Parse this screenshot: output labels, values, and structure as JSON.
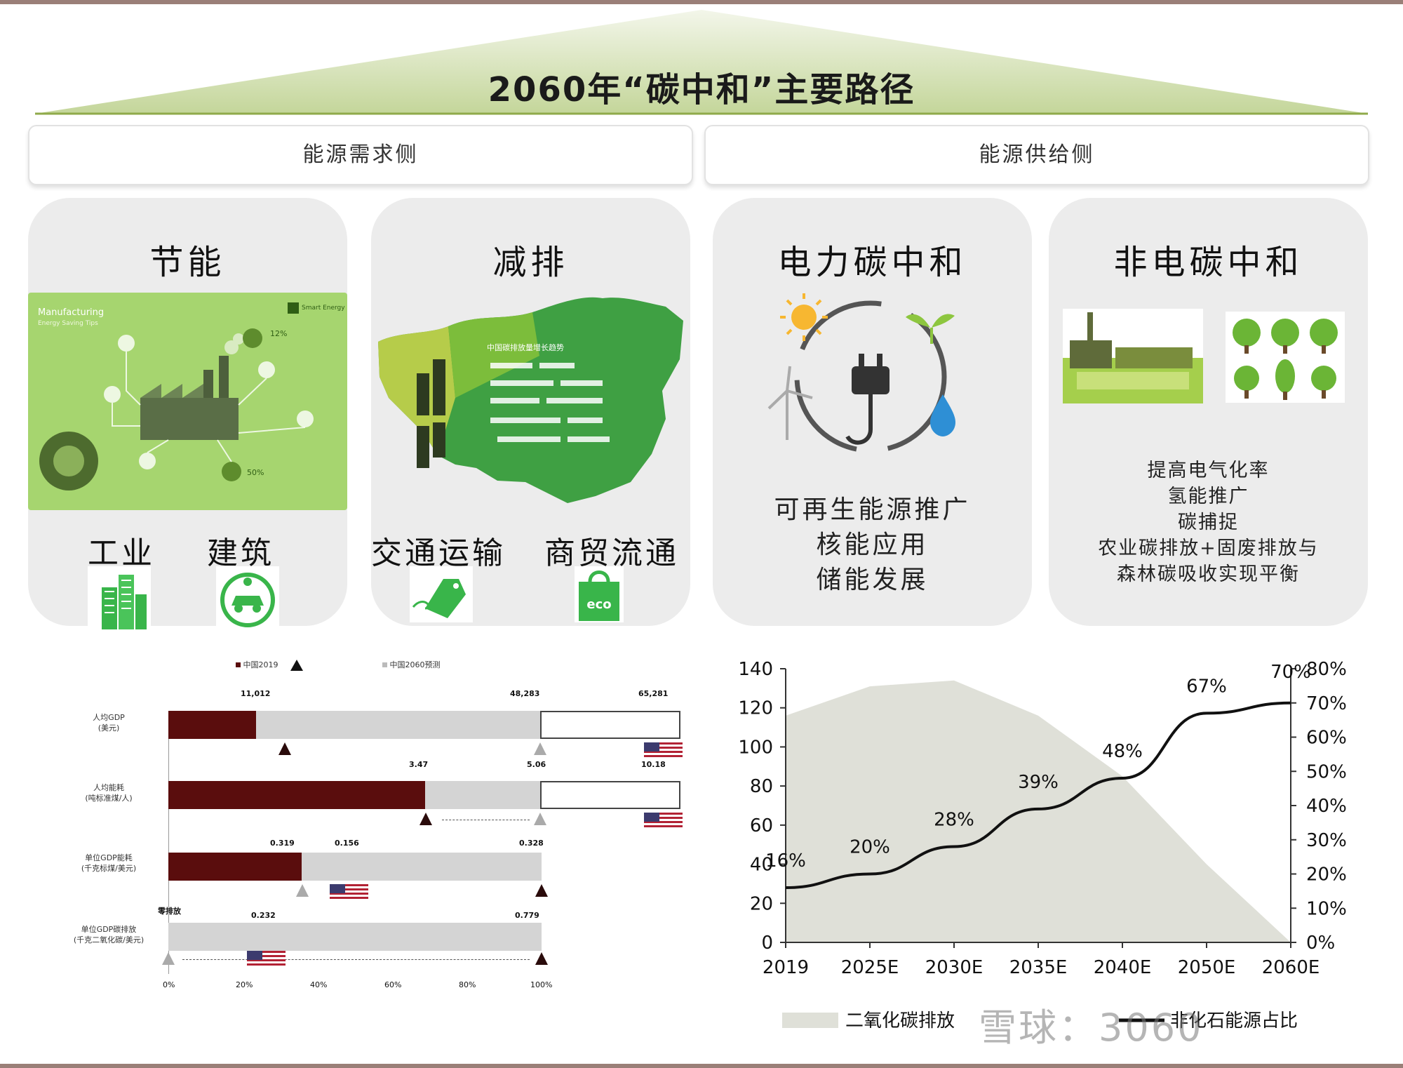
{
  "title": "2060年“碳中和”主要路径",
  "sides": {
    "demand": "能源需求侧",
    "supply": "能源供给侧"
  },
  "panels": {
    "saving": {
      "title": "节能",
      "labels": [
        "工业",
        "建筑"
      ],
      "image_texts": [
        "Manufacturing",
        "Energy Saving Tips",
        "Smart Energy",
        "12%",
        "50%"
      ]
    },
    "reduction": {
      "title": "减排",
      "labels": [
        "交通运输",
        "商贸流通"
      ],
      "map_text": "中国碳排放量增长趋势",
      "icon_text": "eco"
    },
    "power": {
      "title": "电力碳中和",
      "lines": [
        "可再生能源推广",
        "核能应用",
        "储能发展"
      ]
    },
    "nonpower": {
      "title": "非电碳中和",
      "lines": [
        "提高电气化率",
        "氢能推广",
        "碳捕捉",
        "农业碳排放+固废排放与",
        "森林碳吸收实现平衡"
      ]
    }
  },
  "left_chart": {
    "legend": [
      "中国2019",
      "中国2060预测"
    ],
    "rows": [
      {
        "label_lines": [
          "人均GDP",
          "(美元)"
        ],
        "values": [
          "11,012",
          "48,283",
          "65,281"
        ]
      },
      {
        "label_lines": [
          "人均能耗",
          "(吨标准煤/人)"
        ],
        "values": [
          "3.47",
          "5.06",
          "10.18"
        ]
      },
      {
        "label_lines": [
          "单位GDP能耗",
          "(千克标煤/美元)"
        ],
        "values": [
          "0.319",
          "0.156",
          "0.328"
        ]
      },
      {
        "label_lines": [
          "单位GDP碳排放",
          "(千克二氧化碳/美元)"
        ],
        "values": [
          "0.232",
          "0.779"
        ],
        "left_marker": "零排放"
      }
    ],
    "x_ticks": [
      "0%",
      "20%",
      "40%",
      "60%",
      "80%",
      "100%"
    ]
  },
  "right_chart": {
    "chart_data": {
      "type": "area",
      "categories": [
        "2019",
        "2025E",
        "2030E",
        "2035E",
        "2040E",
        "2050E",
        "2060E"
      ],
      "series": [
        {
          "name": "二氧化碳排放",
          "kind": "area",
          "axis": "left",
          "values": [
            116,
            131,
            134,
            116,
            85,
            40,
            0
          ]
        },
        {
          "name": "非化石能源占比",
          "kind": "line",
          "axis": "right",
          "values": [
            16,
            20,
            28,
            39,
            48,
            67,
            70
          ]
        }
      ],
      "ylim_left": [
        0,
        140
      ],
      "ylim_right": [
        0,
        80
      ],
      "y_left_ticks": [
        "0",
        "20",
        "40",
        "60",
        "80",
        "100",
        "120",
        "140"
      ],
      "y_right_ticks": [
        "0%",
        "10%",
        "20%",
        "30%",
        "40%",
        "50%",
        "60%",
        "70%",
        "80%"
      ],
      "point_labels": [
        "16%",
        "20%",
        "28%",
        "39%",
        "48%",
        "67%",
        "70%"
      ],
      "legend": [
        "二氧化碳排放",
        "非化石能源占比"
      ],
      "colors": {
        "area": "#dfe0d8",
        "line": "#111111"
      }
    }
  },
  "watermark": "雪球：3060",
  "colors": {
    "green": "#6cc24a",
    "panel": "#ececec",
    "maroon": "#5a0d0d",
    "roof": "#c9d9a3"
  }
}
